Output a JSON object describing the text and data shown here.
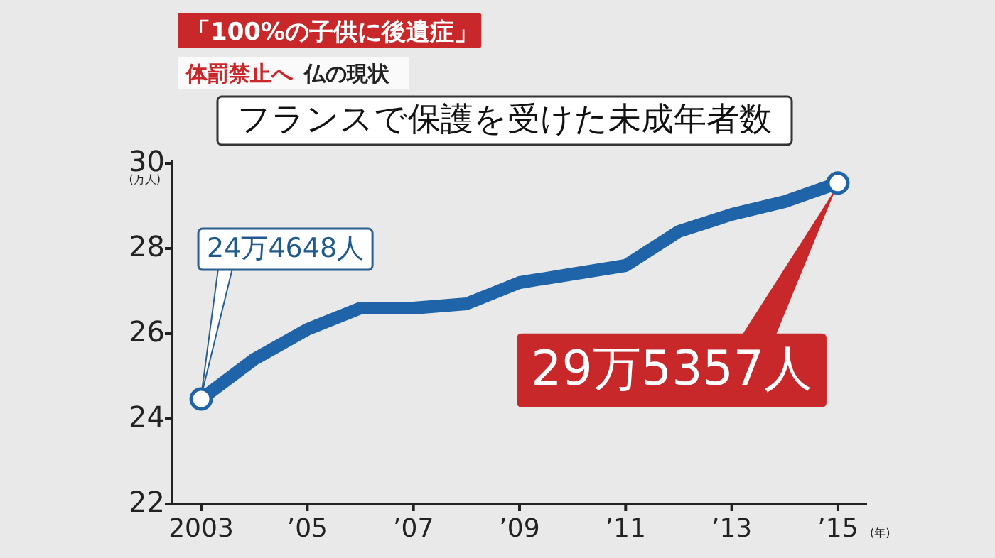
{
  "chart_data": {
    "type": "line",
    "title": "フランスで保護を受けた未成年者数",
    "annotations": [
      "「100%の子供に後遺症」",
      "体罰禁止へ",
      "仏の現状",
      {
        "text": "24万4648人",
        "x": 2003,
        "y": 24.4648
      },
      "29万5357人"
    ],
    "ylabel": "(万人)",
    "xlabel": "(年)",
    "x": [
      2003,
      2004,
      2005,
      2006,
      2007,
      2008,
      2009,
      2010,
      2011,
      2012,
      2013,
      2014,
      2015
    ],
    "series": [
      {
        "color": "#1f63a8",
        "values": [
          24.4648,
          25.4,
          26.1,
          26.6,
          26.6,
          26.7,
          27.2,
          27.4,
          27.6,
          28.4,
          28.8,
          29.1,
          29.5357
        ]
      }
    ],
    "xlim": [
      2002.45,
      2015.55
    ],
    "ylim": [
      22,
      30
    ],
    "xticks": [
      {
        "value": 2003,
        "label": "2003"
      },
      {
        "value": 2005,
        "label": "’05"
      },
      {
        "value": 2007,
        "label": "’07"
      },
      {
        "value": 2009,
        "label": "’09"
      },
      {
        "value": 2011,
        "label": "’11"
      },
      {
        "value": 2013,
        "label": "’13"
      },
      {
        "value": 2015,
        "label": "’15"
      }
    ],
    "yticks": [
      22,
      24,
      26,
      28,
      30
    ],
    "grid": false,
    "line_style": "solid"
  }
}
